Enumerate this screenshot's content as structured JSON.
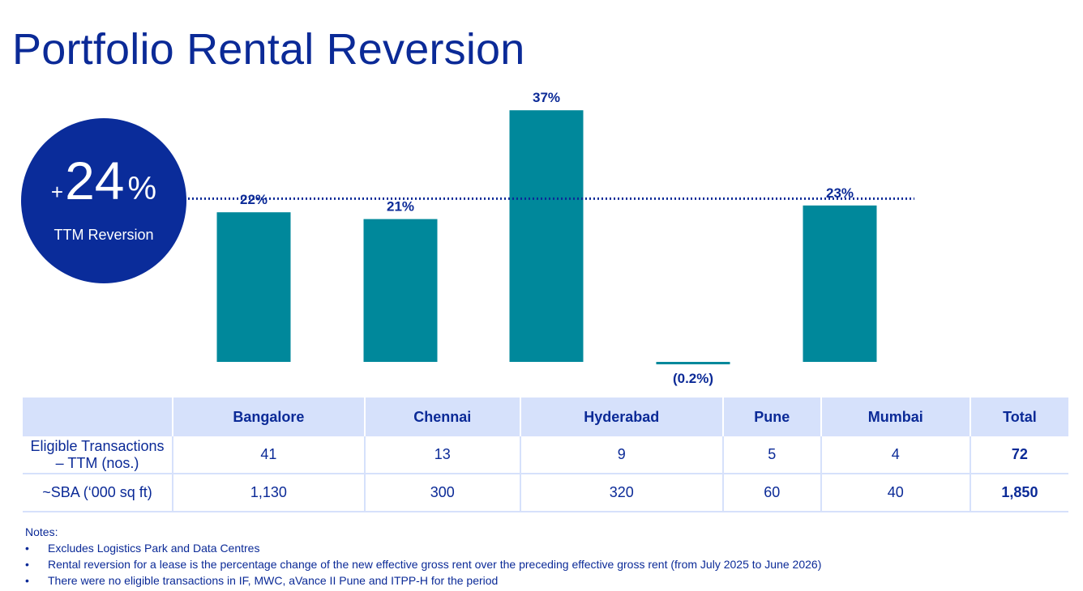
{
  "title": "Portfolio Rental Reversion",
  "badge": {
    "plus": "+",
    "value": "24",
    "percent": "%",
    "label": "TTM Reversion"
  },
  "chart_data": {
    "type": "bar",
    "categories": [
      "Bangalore",
      "Chennai",
      "Hyderabad",
      "Pune",
      "Mumbai"
    ],
    "values": [
      22,
      21,
      37,
      -0.2,
      23
    ],
    "labels": [
      "22%",
      "21%",
      "37%",
      "(0.2%)",
      "23%"
    ],
    "reference_line": 24,
    "ylim": [
      0,
      37
    ],
    "grid": false,
    "colors": {
      "bar": "#00889b",
      "reference": "#0b2a97",
      "label": "#0b2a97"
    }
  },
  "table": {
    "headers": [
      "",
      "Bangalore",
      "Chennai",
      "Hyderabad",
      "Pune",
      "Mumbai",
      "Total"
    ],
    "rows": [
      {
        "label_line1": "Eligible Transactions",
        "label_line2": "– TTM (nos.)",
        "cells": [
          "41",
          "13",
          "9",
          "5",
          "4"
        ],
        "total": "72"
      },
      {
        "label_line1": "~SBA (‘000 sq ft)",
        "label_line2": "",
        "cells": [
          "1,130",
          "300",
          "320",
          "60",
          "40"
        ],
        "total": "1,850"
      }
    ]
  },
  "notes": {
    "heading": "Notes:",
    "items": [
      "Excludes Logistics Park and Data Centres",
      "Rental reversion for a lease is the percentage change of the new effective gross rent over the preceding effective gross rent (from July 2025 to June 2026)",
      "There were no eligible transactions in IF, MWC, aVance II Pune and ITPP-H for the period"
    ]
  },
  "colors": {
    "title": "#0b2a97",
    "badge_bg": "#0a2c9a",
    "table_header_bg": "#d6e1fb"
  }
}
